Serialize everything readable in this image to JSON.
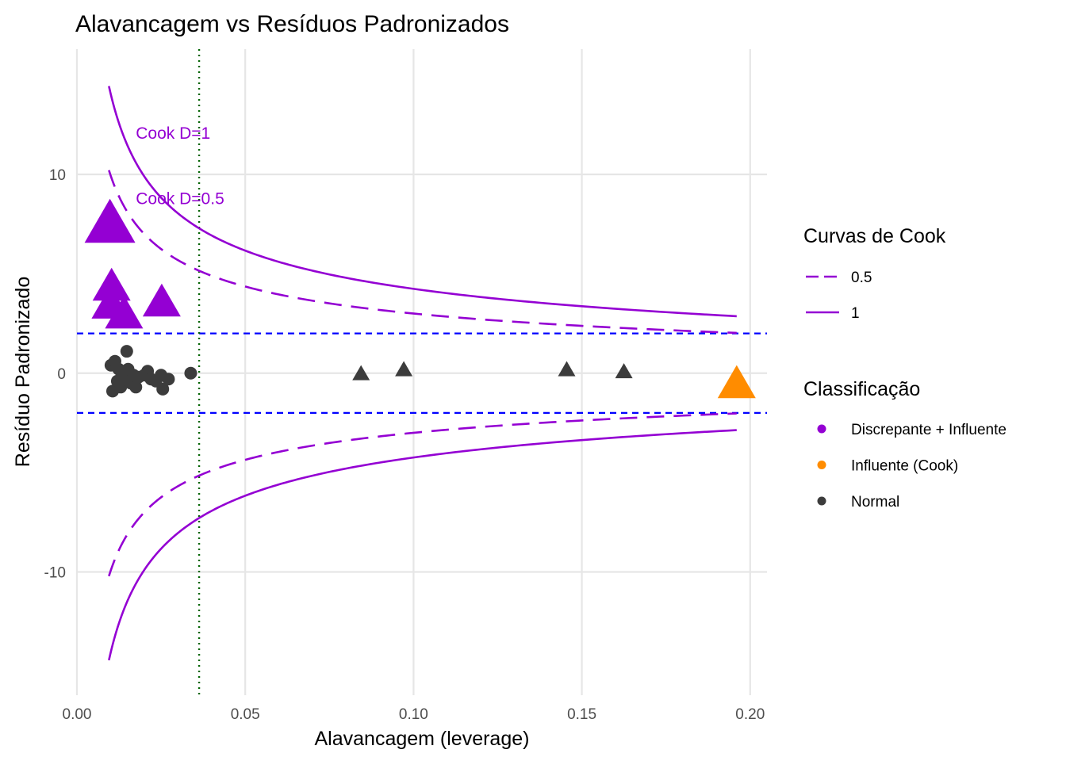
{
  "chart_data": {
    "type": "scatter",
    "title": "Alavancagem vs Resíduos Padronizados",
    "xlabel": "Alavancagem (leverage)",
    "ylabel": "Resíduo Padronizado",
    "xlim": [
      0.0,
      0.205
    ],
    "ylim": [
      -16.2,
      16.3
    ],
    "x_ticks": [
      0.0,
      0.05,
      0.1,
      0.15,
      0.2
    ],
    "x_tick_labels": [
      "0.00",
      "0.05",
      "0.10",
      "0.15",
      "0.20"
    ],
    "y_ticks": [
      -10,
      0,
      10
    ],
    "y_tick_labels": [
      "-10",
      "0",
      "10"
    ],
    "grid": true,
    "n_params": 2,
    "leverage_threshold": 0.0363,
    "residual_thresholds": [
      -2,
      2
    ],
    "cook_curve_x_range": [
      0.0095,
      0.196
    ],
    "cook_levels": [
      {
        "label": "0.5",
        "d": 0.5,
        "linetype": "dashed"
      },
      {
        "label": "1",
        "d": 1,
        "linetype": "solid"
      }
    ],
    "annotations": [
      {
        "text": "Cook D=1",
        "x": 0.0175,
        "y": 11.8
      },
      {
        "text": "Cook D=0.5",
        "x": 0.0175,
        "y": 8.5
      }
    ],
    "series": [
      {
        "name": "Discrepante + Influente",
        "color": "#9400D3",
        "points": [
          {
            "x": 0.0098,
            "y": 7.3,
            "size": 3,
            "shape": "triangle"
          },
          {
            "x": 0.0103,
            "y": 4.2,
            "size": 2,
            "shape": "triangle"
          },
          {
            "x": 0.01,
            "y": 3.3,
            "size": 2,
            "shape": "triangle"
          },
          {
            "x": 0.014,
            "y": 2.8,
            "size": 2,
            "shape": "triangle"
          },
          {
            "x": 0.0252,
            "y": 3.4,
            "size": 2,
            "shape": "triangle"
          }
        ]
      },
      {
        "name": "Influente (Cook)",
        "color": "#FF8C00",
        "points": [
          {
            "x": 0.196,
            "y": -0.7,
            "size": 2,
            "shape": "triangle"
          }
        ]
      },
      {
        "name": "Normal",
        "color": "#3C3C3C",
        "points": [
          {
            "x": 0.0844,
            "y": -0.1,
            "size": 1,
            "shape": "triangle"
          },
          {
            "x": 0.0971,
            "y": 0.1,
            "size": 1,
            "shape": "triangle"
          },
          {
            "x": 0.1455,
            "y": 0.1,
            "size": 1,
            "shape": "triangle"
          },
          {
            "x": 0.1625,
            "y": 0.0,
            "size": 1,
            "shape": "triangle"
          },
          {
            "x": 0.0148,
            "y": 1.1,
            "size": 1,
            "shape": "circle"
          },
          {
            "x": 0.0101,
            "y": 0.4,
            "size": 1,
            "shape": "circle"
          },
          {
            "x": 0.0106,
            "y": -0.9,
            "size": 1,
            "shape": "circle"
          },
          {
            "x": 0.0113,
            "y": 0.6,
            "size": 1,
            "shape": "circle"
          },
          {
            "x": 0.012,
            "y": -0.4,
            "size": 1,
            "shape": "circle"
          },
          {
            "x": 0.0124,
            "y": 0.2,
            "size": 1,
            "shape": "circle"
          },
          {
            "x": 0.013,
            "y": -0.7,
            "size": 1,
            "shape": "circle"
          },
          {
            "x": 0.0136,
            "y": 0.0,
            "size": 1,
            "shape": "circle"
          },
          {
            "x": 0.0143,
            "y": -0.3,
            "size": 1,
            "shape": "circle"
          },
          {
            "x": 0.0152,
            "y": 0.2,
            "size": 1,
            "shape": "circle"
          },
          {
            "x": 0.016,
            "y": -0.5,
            "size": 1,
            "shape": "circle"
          },
          {
            "x": 0.0168,
            "y": -0.1,
            "size": 1,
            "shape": "circle"
          },
          {
            "x": 0.0175,
            "y": -0.7,
            "size": 1,
            "shape": "circle"
          },
          {
            "x": 0.0183,
            "y": -0.2,
            "size": 1,
            "shape": "circle"
          },
          {
            "x": 0.02,
            "y": -0.1,
            "size": 1,
            "shape": "circle"
          },
          {
            "x": 0.021,
            "y": 0.1,
            "size": 1,
            "shape": "circle"
          },
          {
            "x": 0.022,
            "y": -0.3,
            "size": 1,
            "shape": "circle"
          },
          {
            "x": 0.0235,
            "y": -0.4,
            "size": 1,
            "shape": "circle"
          },
          {
            "x": 0.025,
            "y": -0.1,
            "size": 1,
            "shape": "circle"
          },
          {
            "x": 0.0255,
            "y": -0.8,
            "size": 1,
            "shape": "circle"
          },
          {
            "x": 0.0272,
            "y": -0.3,
            "size": 1,
            "shape": "circle"
          },
          {
            "x": 0.0338,
            "y": 0.0,
            "size": 1,
            "shape": "circle"
          }
        ]
      }
    ],
    "legends": [
      {
        "title": "Curvas de Cook",
        "items": [
          {
            "label": "0.5",
            "linetype": "dashed",
            "color": "#9400D3"
          },
          {
            "label": "1",
            "linetype": "solid",
            "color": "#9400D3"
          }
        ]
      },
      {
        "title": "Classificação",
        "items": [
          {
            "label": "Discrepante + Influente",
            "color": "#9400D3"
          },
          {
            "label": "Influente (Cook)",
            "color": "#FF8C00"
          },
          {
            "label": "Normal",
            "color": "#3C3C3C"
          }
        ]
      }
    ],
    "colors": {
      "cook": "#9400D3",
      "threshold_residual": "#0000FF",
      "threshold_leverage": "#006400",
      "grid": "#E6E6E6"
    }
  }
}
